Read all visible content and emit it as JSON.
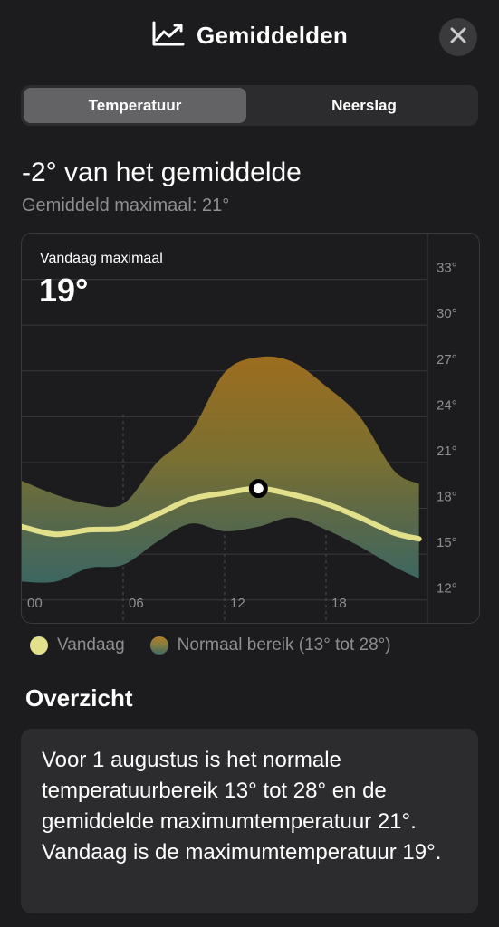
{
  "header": {
    "title": "Gemiddelden",
    "icon": "line-chart-icon",
    "close_icon": "close-icon"
  },
  "tabs": [
    {
      "label": "Temperatuur",
      "selected": true
    },
    {
      "label": "Neerslag",
      "selected": false
    }
  ],
  "summary": {
    "headline": "-2° van het gemiddelde",
    "subline": "Gemiddeld maximaal: 21°"
  },
  "chart_today": {
    "label": "Vandaag maximaal",
    "value": "19°"
  },
  "chart_data": {
    "type": "area",
    "x": [
      0,
      2,
      4,
      6,
      8,
      10,
      12,
      14,
      16,
      18,
      20,
      22,
      23.5
    ],
    "x_ticks": [
      "00",
      "06",
      "12",
      "18"
    ],
    "x_tick_values": [
      0,
      6,
      12,
      18
    ],
    "y_ticks": [
      "12°",
      "15°",
      "18°",
      "21°",
      "24°",
      "27°",
      "30°",
      "33°"
    ],
    "y_tick_values": [
      12,
      15,
      18,
      21,
      24,
      27,
      30,
      33
    ],
    "ylim": [
      10.5,
      36
    ],
    "xlim": [
      0,
      24
    ],
    "series": [
      {
        "name": "Vandaag",
        "values": [
          16.8,
          16.3,
          16.6,
          16.7,
          17.6,
          18.6,
          19.0,
          19.3,
          18.9,
          18.3,
          17.4,
          16.4,
          16.0
        ],
        "color": "#e3e08b"
      },
      {
        "name": "Normaal bereik",
        "upper": [
          19.8,
          18.9,
          18.3,
          18.3,
          21.0,
          23.0,
          26.9,
          27.9,
          27.6,
          26.0,
          24.0,
          20.5,
          19.6
        ],
        "lower": [
          13.2,
          13.2,
          14.1,
          14.3,
          15.8,
          17.0,
          16.5,
          16.8,
          17.4,
          16.6,
          15.5,
          14.2,
          13.4
        ],
        "color": "#b47e2a"
      }
    ],
    "marker": {
      "x": 14,
      "y": 19.3
    },
    "grid": true
  },
  "legend": {
    "today": "Vandaag",
    "range": "Normaal bereik (13° tot 28°)"
  },
  "overview": {
    "title": "Overzicht",
    "text": "Voor 1 augustus is het normale temperatuurbereik 13° tot 28° en de gemiddelde maximumtemperatuur 21°. Vandaag is de maximumtemperatuur 19°."
  }
}
